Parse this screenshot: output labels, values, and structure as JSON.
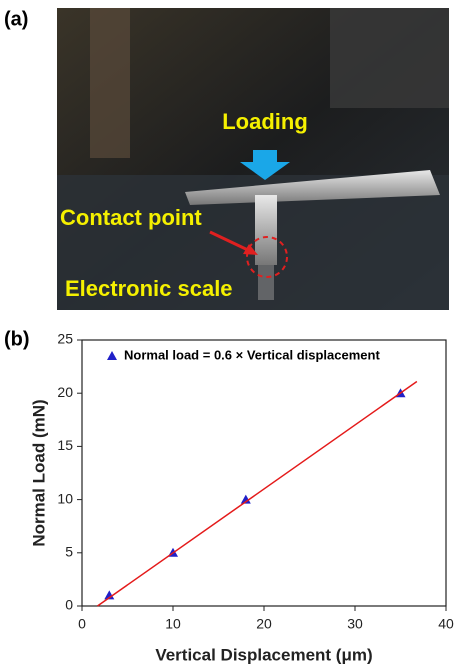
{
  "panels": [
    "(a)",
    "(b)"
  ],
  "photo_annotations": [
    "Loading",
    "Contact point",
    "Electronic scale"
  ],
  "chart_data": {
    "type": "scatter",
    "xlabel": "Vertical Displacement (μm)",
    "ylabel": "Normal Load (mN)",
    "xlim": [
      0,
      40
    ],
    "ylim": [
      0,
      25
    ],
    "xticks": [
      0,
      10,
      20,
      30,
      40
    ],
    "yticks": [
      0,
      5,
      10,
      15,
      20,
      25
    ],
    "grid": false,
    "legend": "upper left",
    "series": [
      {
        "name": "Normal load = 0.6 × Vertical displacement",
        "color": "#2020c8",
        "marker": "triangle",
        "x": [
          3,
          10,
          18,
          35
        ],
        "values": [
          1,
          5,
          10,
          20
        ]
      },
      {
        "color": "#e41a1a",
        "marker": "line",
        "x": [
          1.7,
          36.8
        ],
        "values": [
          0,
          21.1
        ]
      }
    ]
  }
}
